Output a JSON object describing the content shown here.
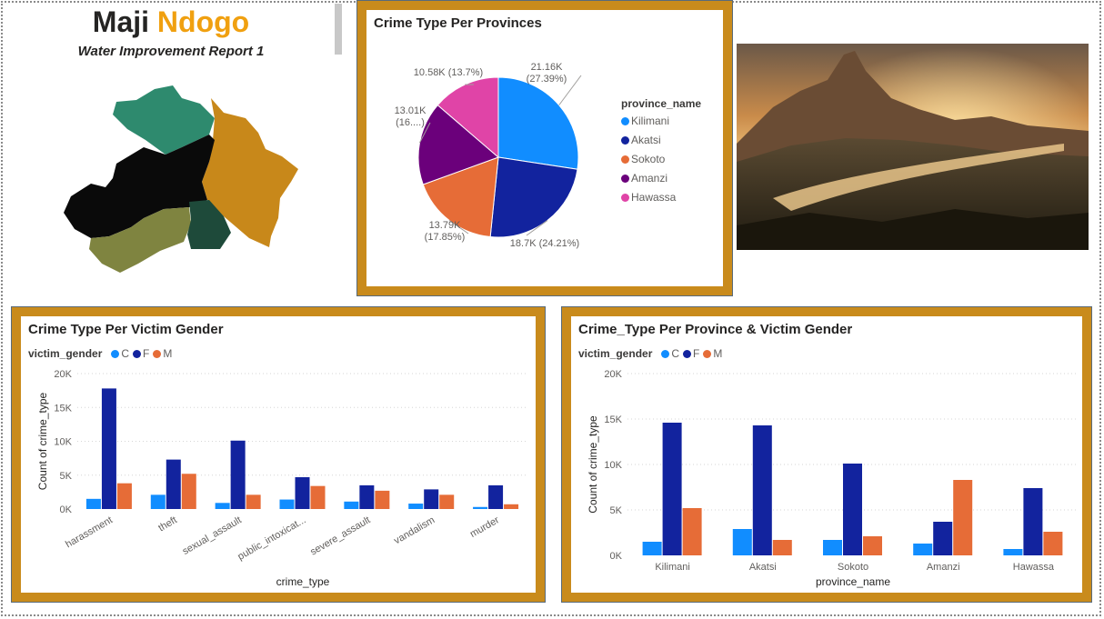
{
  "header": {
    "title_a": "Maji",
    "title_b": "Ndogo",
    "subtitle": "Water Improvement Report 1"
  },
  "colors": {
    "gold": "#c98b1c",
    "C": "#118dff",
    "F": "#12239e",
    "M": "#e66c37",
    "Kilimani": "#118dff",
    "Akatsi": "#12239e",
    "Sokoto": "#e66c37",
    "Amanzi": "#6b007b",
    "Hawassa": "#e044a7"
  },
  "icons": {
    "map": "province-map-icon",
    "photo": "landscape-photo"
  },
  "pie": {
    "title": "Crime Type Per Provinces",
    "legend_title": "province_name",
    "labels": [
      {
        "l1": "21.16K",
        "l2": "(27.39%)"
      },
      {
        "l1": "18.7K (24.21%)",
        "l2": ""
      },
      {
        "l1": "13.79K",
        "l2": "(17.85%)"
      },
      {
        "l1": "13.01K",
        "l2": "(16....)"
      },
      {
        "l1": "10.58K (13.7%)",
        "l2": ""
      }
    ]
  },
  "bar1": {
    "title": "Crime Type Per Victim Gender",
    "legend_title": "victim_gender"
  },
  "bar2": {
    "title": "Crime_Type Per Province & Victim Gender",
    "legend_title": "victim_gender"
  },
  "chart_data": [
    {
      "type": "pie",
      "title": "Crime Type Per Provinces",
      "legend_title": "province_name",
      "categories": [
        "Kilimani",
        "Akatsi",
        "Sokoto",
        "Amanzi",
        "Hawassa"
      ],
      "values": [
        21160,
        18700,
        13790,
        13010,
        10580
      ],
      "percent": [
        27.39,
        24.21,
        17.85,
        16.84,
        13.7
      ]
    },
    {
      "type": "bar",
      "title": "Crime Type Per Victim Gender",
      "xlabel": "crime_type",
      "ylabel": "Count of crime_type",
      "ylim": [
        0,
        20000
      ],
      "yticks": [
        "0K",
        "5K",
        "10K",
        "15K",
        "20K"
      ],
      "categories": [
        "harassment",
        "theft",
        "sexual_assault",
        "public_intoxicat...",
        "severe_assault",
        "vandalism",
        "murder"
      ],
      "series": [
        {
          "name": "C",
          "values": [
            1500,
            2100,
            900,
            1400,
            1100,
            800,
            300
          ]
        },
        {
          "name": "F",
          "values": [
            17800,
            7300,
            10100,
            4700,
            3500,
            2900,
            3500
          ]
        },
        {
          "name": "M",
          "values": [
            3800,
            5200,
            2100,
            3400,
            2700,
            2100,
            700
          ]
        }
      ]
    },
    {
      "type": "bar",
      "title": "Crime_Type Per Province & Victim Gender",
      "xlabel": "province_name",
      "ylabel": "Count of crime_type",
      "ylim": [
        0,
        20000
      ],
      "yticks": [
        "0K",
        "5K",
        "10K",
        "15K",
        "20K"
      ],
      "categories": [
        "Kilimani",
        "Akatsi",
        "Sokoto",
        "Amanzi",
        "Hawassa"
      ],
      "series": [
        {
          "name": "C",
          "values": [
            1500,
            2900,
            1700,
            1300,
            700
          ]
        },
        {
          "name": "F",
          "values": [
            14600,
            14300,
            10100,
            3700,
            7400
          ]
        },
        {
          "name": "M",
          "values": [
            5200,
            1700,
            2100,
            8300,
            2600
          ]
        }
      ]
    }
  ]
}
